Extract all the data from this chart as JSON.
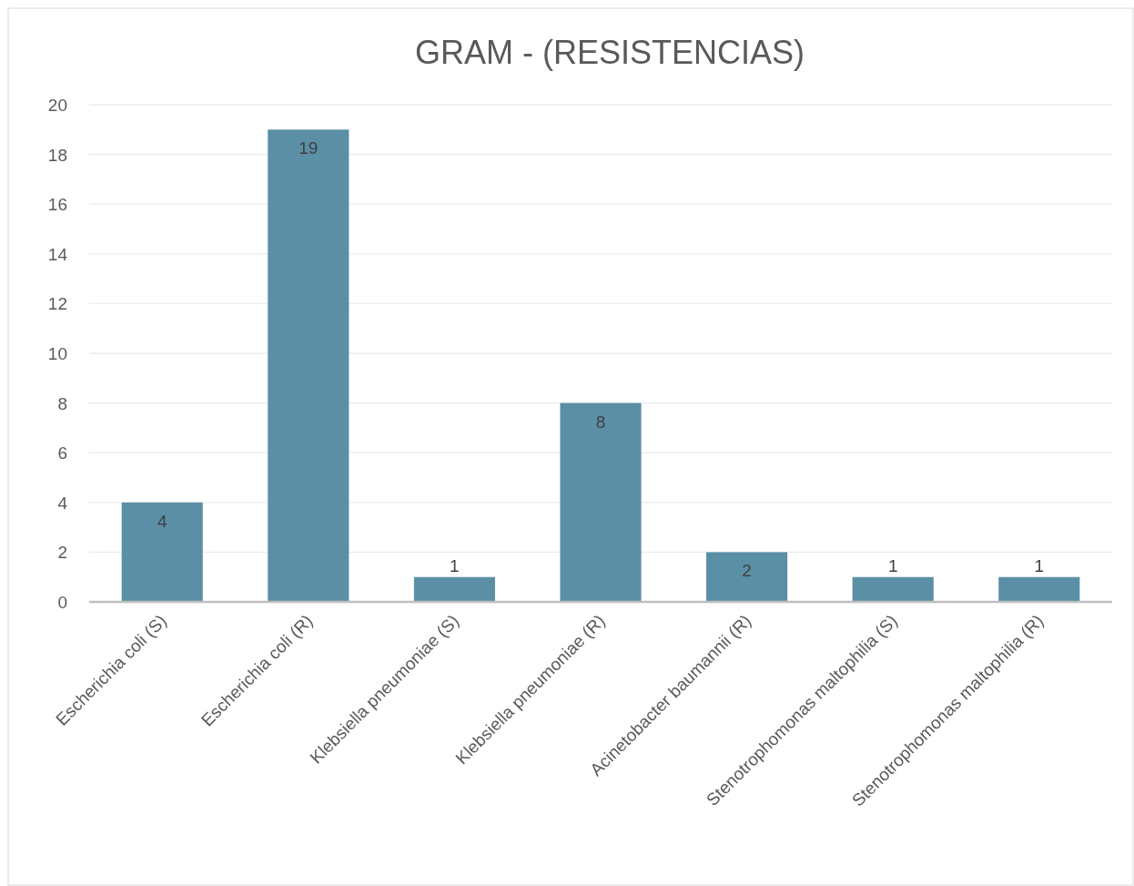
{
  "chart_data": {
    "type": "bar",
    "title": "GRAM - (RESISTENCIAS)",
    "categories": [
      "Escherichia coli (S)",
      "Escherichia coli (R)",
      "Klebsiella pneumoniae (S)",
      "Klebsiella pneumoniae (R)",
      "Acinetobacter baumannii (R)",
      "Stenotrophomonas maltophilia (S)",
      "Stenotrophomonas maltophilia (R)"
    ],
    "values": [
      4,
      19,
      1,
      8,
      2,
      1,
      1
    ],
    "color": "#5b8fa6",
    "ylim": [
      0,
      20
    ],
    "yticks": [
      0,
      2,
      4,
      6,
      8,
      10,
      12,
      14,
      16,
      18,
      20
    ],
    "grid": "y",
    "data_labels": true
  }
}
